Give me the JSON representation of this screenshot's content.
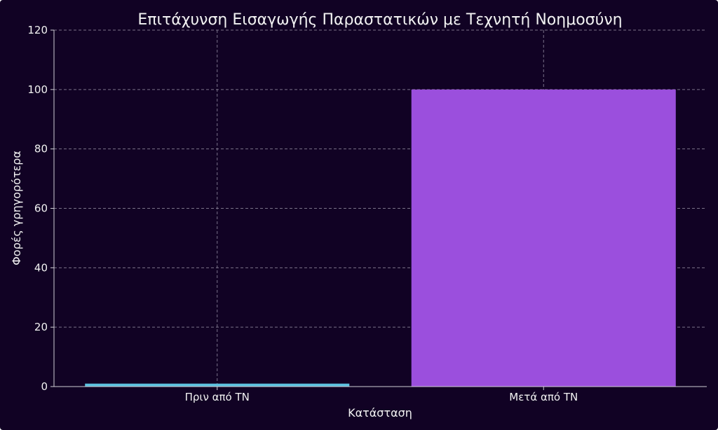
{
  "chart_data": {
    "type": "bar",
    "title": "Επιτάχυνση Εισαγωγής Παραστατικών με Τεχνητή Νοημοσύνη",
    "xlabel": "Κατάσταση",
    "ylabel": "Φορές γρηγορότερα",
    "categories": [
      "Πριν από ΤΝ",
      "Μετά από ΤΝ"
    ],
    "values": [
      1,
      100
    ],
    "colors": [
      "#5bc0de",
      "#9b4fdd"
    ],
    "ylim": [
      0,
      120
    ],
    "yticks": [
      0,
      20,
      40,
      60,
      80,
      100,
      120
    ],
    "grid": true,
    "background": "#110224"
  }
}
